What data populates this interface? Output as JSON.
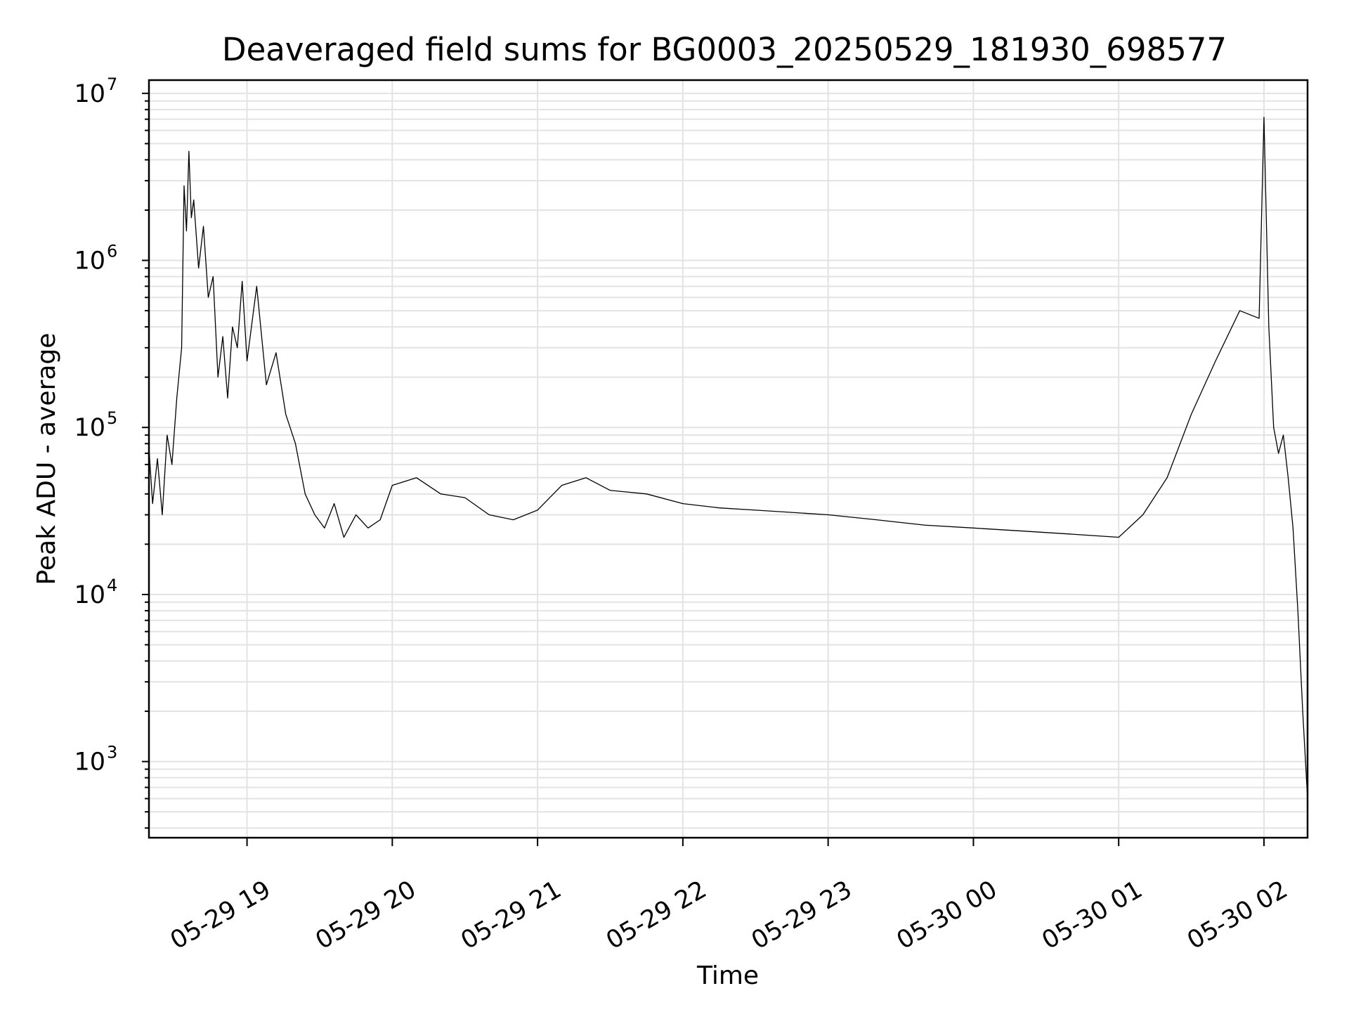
{
  "chart_data": {
    "type": "line",
    "title": "Deaveraged field sums for BG0003_20250529_181930_698577",
    "xlabel": "Time",
    "ylabel": "Peak ADU - average",
    "yscale": "log",
    "ylim": [
      350,
      12000000
    ],
    "xlim": [
      "2025-05-29 18:19:30",
      "2025-05-30 02:18:00"
    ],
    "x_ticks": [
      {
        "label": "05-29 19",
        "time": "2025-05-29 19:00:00"
      },
      {
        "label": "05-29 20",
        "time": "2025-05-29 20:00:00"
      },
      {
        "label": "05-29 21",
        "time": "2025-05-29 21:00:00"
      },
      {
        "label": "05-29 22",
        "time": "2025-05-29 22:00:00"
      },
      {
        "label": "05-29 23",
        "time": "2025-05-29 23:00:00"
      },
      {
        "label": "05-30 00",
        "time": "2025-05-30 00:00:00"
      },
      {
        "label": "05-30 01",
        "time": "2025-05-30 01:00:00"
      },
      {
        "label": "05-30 02",
        "time": "2025-05-30 02:00:00"
      }
    ],
    "y_ticks": [
      {
        "base": "10",
        "exponent": "3",
        "value": 1000
      },
      {
        "base": "10",
        "exponent": "4",
        "value": 10000
      },
      {
        "base": "10",
        "exponent": "5",
        "value": 100000
      },
      {
        "base": "10",
        "exponent": "6",
        "value": 1000000
      },
      {
        "base": "10",
        "exponent": "7",
        "value": 10000000
      }
    ],
    "grid": true,
    "line_color": "#000000",
    "series": [
      {
        "points": [
          [
            "2025-05-29 18:19:30",
            75000
          ],
          [
            "2025-05-29 18:21:00",
            35000
          ],
          [
            "2025-05-29 18:23:00",
            65000
          ],
          [
            "2025-05-29 18:25:00",
            30000
          ],
          [
            "2025-05-29 18:27:00",
            90000
          ],
          [
            "2025-05-29 18:29:00",
            60000
          ],
          [
            "2025-05-29 18:31:00",
            150000
          ],
          [
            "2025-05-29 18:33:00",
            300000
          ],
          [
            "2025-05-29 18:34:00",
            2800000
          ],
          [
            "2025-05-29 18:35:00",
            1500000
          ],
          [
            "2025-05-29 18:36:00",
            4500000
          ],
          [
            "2025-05-29 18:37:00",
            1800000
          ],
          [
            "2025-05-29 18:38:00",
            2300000
          ],
          [
            "2025-05-29 18:40:00",
            900000
          ],
          [
            "2025-05-29 18:42:00",
            1600000
          ],
          [
            "2025-05-29 18:44:00",
            600000
          ],
          [
            "2025-05-29 18:46:00",
            800000
          ],
          [
            "2025-05-29 18:48:00",
            200000
          ],
          [
            "2025-05-29 18:50:00",
            350000
          ],
          [
            "2025-05-29 18:52:00",
            150000
          ],
          [
            "2025-05-29 18:54:00",
            400000
          ],
          [
            "2025-05-29 18:56:00",
            300000
          ],
          [
            "2025-05-29 18:58:00",
            750000
          ],
          [
            "2025-05-29 19:00:00",
            250000
          ],
          [
            "2025-05-29 19:04:00",
            700000
          ],
          [
            "2025-05-29 19:08:00",
            180000
          ],
          [
            "2025-05-29 19:12:00",
            280000
          ],
          [
            "2025-05-29 19:16:00",
            120000
          ],
          [
            "2025-05-29 19:20:00",
            80000
          ],
          [
            "2025-05-29 19:24:00",
            40000
          ],
          [
            "2025-05-29 19:28:00",
            30000
          ],
          [
            "2025-05-29 19:32:00",
            25000
          ],
          [
            "2025-05-29 19:36:00",
            35000
          ],
          [
            "2025-05-29 19:40:00",
            22000
          ],
          [
            "2025-05-29 19:45:00",
            30000
          ],
          [
            "2025-05-29 19:50:00",
            25000
          ],
          [
            "2025-05-29 19:55:00",
            28000
          ],
          [
            "2025-05-29 20:00:00",
            45000
          ],
          [
            "2025-05-29 20:10:00",
            50000
          ],
          [
            "2025-05-29 20:20:00",
            40000
          ],
          [
            "2025-05-29 20:30:00",
            38000
          ],
          [
            "2025-05-29 20:40:00",
            30000
          ],
          [
            "2025-05-29 20:50:00",
            28000
          ],
          [
            "2025-05-29 21:00:00",
            32000
          ],
          [
            "2025-05-29 21:10:00",
            45000
          ],
          [
            "2025-05-29 21:20:00",
            50000
          ],
          [
            "2025-05-29 21:30:00",
            42000
          ],
          [
            "2025-05-29 21:45:00",
            40000
          ],
          [
            "2025-05-29 22:00:00",
            35000
          ],
          [
            "2025-05-29 22:15:00",
            33000
          ],
          [
            "2025-05-29 22:30:00",
            32000
          ],
          [
            "2025-05-29 22:45:00",
            31000
          ],
          [
            "2025-05-29 23:00:00",
            30000
          ],
          [
            "2025-05-29 23:20:00",
            28000
          ],
          [
            "2025-05-29 23:40:00",
            26000
          ],
          [
            "2025-05-30 00:00:00",
            25000
          ],
          [
            "2025-05-30 00:20:00",
            24000
          ],
          [
            "2025-05-30 00:40:00",
            23000
          ],
          [
            "2025-05-30 01:00:00",
            22000
          ],
          [
            "2025-05-30 01:10:00",
            30000
          ],
          [
            "2025-05-30 01:20:00",
            50000
          ],
          [
            "2025-05-30 01:30:00",
            120000
          ],
          [
            "2025-05-30 01:40:00",
            250000
          ],
          [
            "2025-05-30 01:50:00",
            500000
          ],
          [
            "2025-05-30 01:58:00",
            450000
          ],
          [
            "2025-05-30 02:00:00",
            7200000
          ],
          [
            "2025-05-30 02:02:00",
            400000
          ],
          [
            "2025-05-30 02:04:00",
            100000
          ],
          [
            "2025-05-30 02:06:00",
            70000
          ],
          [
            "2025-05-30 02:08:00",
            90000
          ],
          [
            "2025-05-30 02:10:00",
            50000
          ],
          [
            "2025-05-30 02:12:00",
            25000
          ],
          [
            "2025-05-30 02:14:00",
            8000
          ],
          [
            "2025-05-30 02:16:00",
            2000
          ],
          [
            "2025-05-30 02:18:00",
            600
          ]
        ]
      }
    ]
  }
}
